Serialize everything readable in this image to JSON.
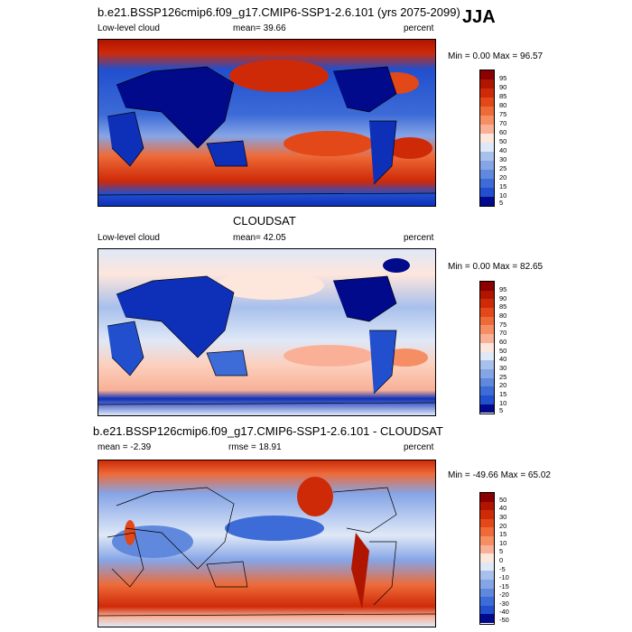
{
  "season": "JJA",
  "colors": {
    "red": [
      "#8b0000",
      "#b01500",
      "#cf2a08",
      "#e24818",
      "#ee6a38",
      "#f58f63",
      "#f9b096",
      "#fccfbd",
      "#fde6dc",
      "#ffffff"
    ],
    "blue": [
      "#ffffff",
      "#dfe8f7",
      "#c6d6f2",
      "#a8c0ec",
      "#86a5e6",
      "#6088dd",
      "#3d6bd7",
      "#214fce",
      "#0e30b8",
      "#000a8a"
    ]
  },
  "panels": [
    {
      "title": "b.e21.BSSP126cmip6.f09_g17.CMIP6-SSP1-2.6.101 (yrs 2075-2099)",
      "left_label": "Low-level cloud",
      "center_label": "mean=  39.66",
      "right_label": "percent",
      "minmax": "Min =   0.00 Max =  96.57",
      "colorbar_ticks": [
        "95",
        "90",
        "85",
        "80",
        "75",
        "70",
        "60",
        "50",
        "40",
        "30",
        "25",
        "20",
        "15",
        "10",
        "5"
      ]
    },
    {
      "title": "CLOUDSAT",
      "left_label": "Low-level cloud",
      "center_label": "mean=  42.05",
      "right_label": "percent",
      "minmax": "Min =   0.00 Max =  82.65",
      "colorbar_ticks": [
        "95",
        "90",
        "85",
        "80",
        "75",
        "70",
        "60",
        "50",
        "40",
        "30",
        "25",
        "20",
        "15",
        "10",
        "5"
      ]
    },
    {
      "title": "b.e21.BSSP126cmip6.f09_g17.CMIP6-SSP1-2.6.101 - CLOUDSAT",
      "left_label": "mean =  -2.39",
      "center_label": "rmse =  18.91",
      "right_label": "percent",
      "minmax": "Min = -49.66 Max =  65.02",
      "colorbar_ticks": [
        "50",
        "40",
        "30",
        "20",
        "15",
        "10",
        "5",
        "0",
        "-5",
        "-10",
        "-15",
        "-20",
        "-30",
        "-40",
        "-50"
      ]
    }
  ]
}
